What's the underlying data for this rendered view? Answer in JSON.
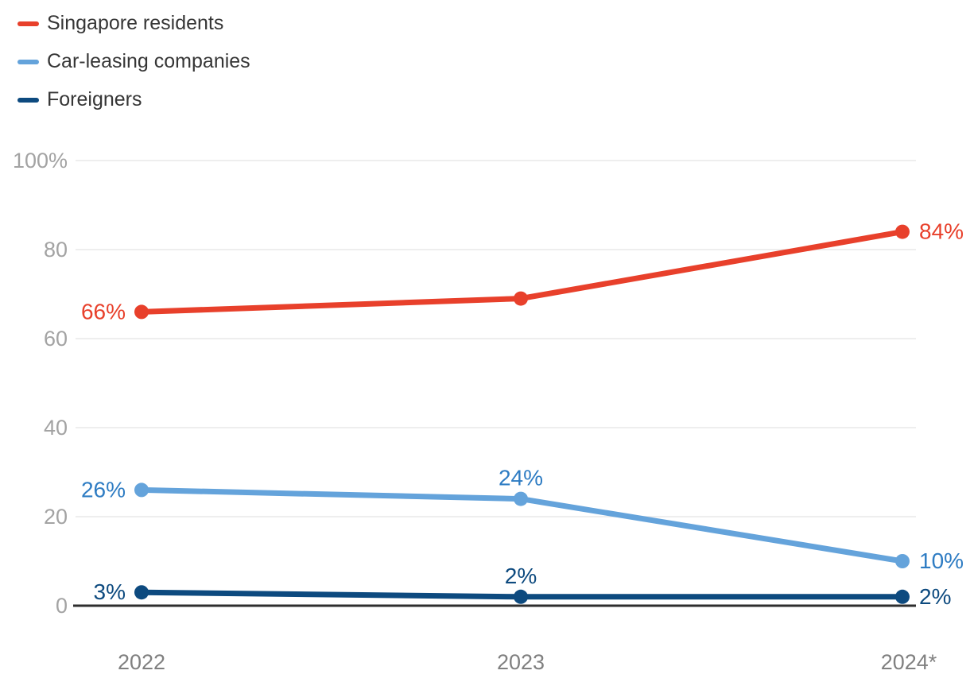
{
  "chart_data": {
    "type": "line",
    "title": "",
    "xlabel": "",
    "ylabel": "",
    "x": [
      "2022",
      "2023",
      "2024*"
    ],
    "ylim": [
      0,
      100
    ],
    "yticks": [
      {
        "value": 0,
        "label": "0"
      },
      {
        "value": 20,
        "label": "20"
      },
      {
        "value": 40,
        "label": "40"
      },
      {
        "value": 60,
        "label": "60"
      },
      {
        "value": 80,
        "label": "80"
      },
      {
        "value": 100,
        "label": "100%"
      }
    ],
    "grid": true,
    "legend_position": "top-left",
    "series": [
      {
        "name": "Singapore residents",
        "color": "#e8402b",
        "label_color": "#e8402b",
        "values": [
          66,
          69,
          84
        ],
        "point_labels": [
          {
            "text": "66%",
            "pos": "left"
          },
          null,
          {
            "text": "84%",
            "pos": "right"
          }
        ]
      },
      {
        "name": "Car-leasing companies",
        "color": "#64a3db",
        "label_color": "#2e7cc3",
        "values": [
          26,
          24,
          10
        ],
        "point_labels": [
          {
            "text": "26%",
            "pos": "left"
          },
          {
            "text": "24%",
            "pos": "above"
          },
          {
            "text": "10%",
            "pos": "right"
          }
        ]
      },
      {
        "name": "Foreigners",
        "color": "#0d4a7f",
        "label_color": "#0d4a7f",
        "values": [
          3,
          2,
          2
        ],
        "point_labels": [
          {
            "text": "3%",
            "pos": "left"
          },
          {
            "text": "2%",
            "pos": "above"
          },
          {
            "text": "2%",
            "pos": "right"
          }
        ]
      }
    ]
  },
  "colors": {
    "gridline": "#e8e8e8",
    "axis": "#2e2e2e",
    "y_tick_text": "#a3a3a3",
    "x_tick_text": "#808080",
    "legend_text": "#363636",
    "background": "#ffffff"
  }
}
